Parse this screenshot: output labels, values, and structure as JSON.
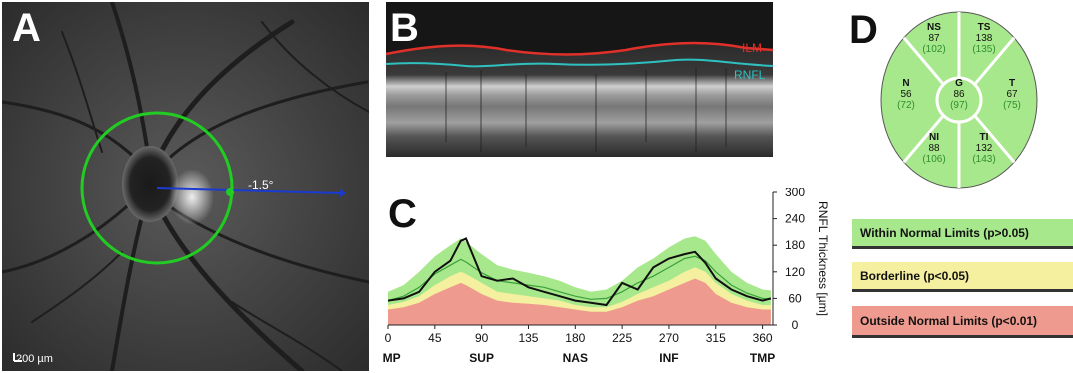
{
  "panels": {
    "a": {
      "letter": "A",
      "scale_bar": "200 µm",
      "angle": "-1.5°"
    },
    "b": {
      "letter": "B",
      "ilm_label": "ILM",
      "rnfl_label": "RNFL"
    },
    "c": {
      "letter": "C"
    },
    "d": {
      "letter": "D"
    }
  },
  "chart_data": {
    "type": "area",
    "xlabel": "",
    "ylabel": "RNFL Thickness [µm]",
    "xlim": [
      0,
      370
    ],
    "ylim": [
      0,
      300
    ],
    "x_ticks": [
      0,
      45,
      90,
      135,
      180,
      225,
      270,
      315,
      360
    ],
    "y_ticks": [
      0,
      60,
      120,
      180,
      240,
      300
    ],
    "region_labels": [
      {
        "text": "TMP",
        "x": 0
      },
      {
        "text": "SUP",
        "x": 90
      },
      {
        "text": "NAS",
        "x": 180
      },
      {
        "text": "INF",
        "x": 270
      },
      {
        "text": "TMP",
        "x": 360
      }
    ],
    "x": [
      0,
      15,
      30,
      45,
      60,
      70,
      75,
      90,
      105,
      120,
      135,
      150,
      165,
      180,
      195,
      210,
      225,
      240,
      255,
      270,
      285,
      295,
      305,
      315,
      330,
      345,
      360,
      368
    ],
    "series": [
      {
        "role": "outside_limit",
        "values": [
          35,
          40,
          50,
          70,
          85,
          95,
          90,
          70,
          55,
          50,
          48,
          45,
          40,
          35,
          30,
          30,
          40,
          55,
          65,
          80,
          95,
          105,
          95,
          70,
          50,
          40,
          35,
          35
        ]
      },
      {
        "role": "borderline_limit",
        "values": [
          45,
          52,
          65,
          90,
          110,
          120,
          115,
          95,
          75,
          70,
          65,
          60,
          55,
          45,
          40,
          40,
          52,
          70,
          85,
          100,
          120,
          130,
          120,
          95,
          70,
          55,
          45,
          45
        ]
      },
      {
        "role": "normal_upper",
        "values": [
          75,
          90,
          120,
          155,
          180,
          195,
          188,
          160,
          135,
          125,
          118,
          110,
          100,
          85,
          75,
          80,
          100,
          130,
          150,
          175,
          195,
          200,
          190,
          160,
          120,
          95,
          80,
          78
        ]
      },
      {
        "role": "normal_mean",
        "values": [
          55,
          65,
          85,
          115,
          135,
          148,
          142,
          118,
          100,
          95,
          90,
          85,
          75,
          65,
          58,
          60,
          75,
          95,
          110,
          130,
          150,
          155,
          145,
          120,
          90,
          72,
          60,
          58
        ]
      },
      {
        "role": "patient",
        "values": [
          55,
          60,
          75,
          120,
          145,
          190,
          195,
          110,
          100,
          105,
          85,
          75,
          65,
          55,
          50,
          45,
          95,
          80,
          130,
          150,
          160,
          165,
          140,
          105,
          80,
          65,
          55,
          60
        ]
      }
    ],
    "colors": {
      "outside": "#ef9a8e",
      "borderline": "#f4f0a0",
      "normal": "#a8e88c",
      "mean_line": "#3aa03a",
      "patient_line": "#111111"
    }
  },
  "sectors": [
    {
      "key": "ns",
      "name": "NS",
      "value": "87",
      "normal": "(102)"
    },
    {
      "key": "ts",
      "name": "TS",
      "value": "138",
      "normal": "(135)"
    },
    {
      "key": "n",
      "name": "N",
      "value": "56",
      "normal": "(72)"
    },
    {
      "key": "g",
      "name": "G",
      "value": "86",
      "normal": "(97)"
    },
    {
      "key": "t",
      "name": "T",
      "value": "67",
      "normal": "(75)"
    },
    {
      "key": "ni",
      "name": "NI",
      "value": "88",
      "normal": "(106)"
    },
    {
      "key": "ti",
      "name": "TI",
      "value": "132",
      "normal": "(143)"
    }
  ],
  "legend": {
    "normal": "Within Normal Limits (p>0.05)",
    "borderline": "Borderline (p<0.05)",
    "outside": "Outside Normal Limits (p<0.01)"
  },
  "colors": {
    "sector_fill": "#a8e88c",
    "normal_value": "#2f8f2f",
    "circle_green": "#22cc22",
    "scan_blue": "#1a3ad0"
  }
}
